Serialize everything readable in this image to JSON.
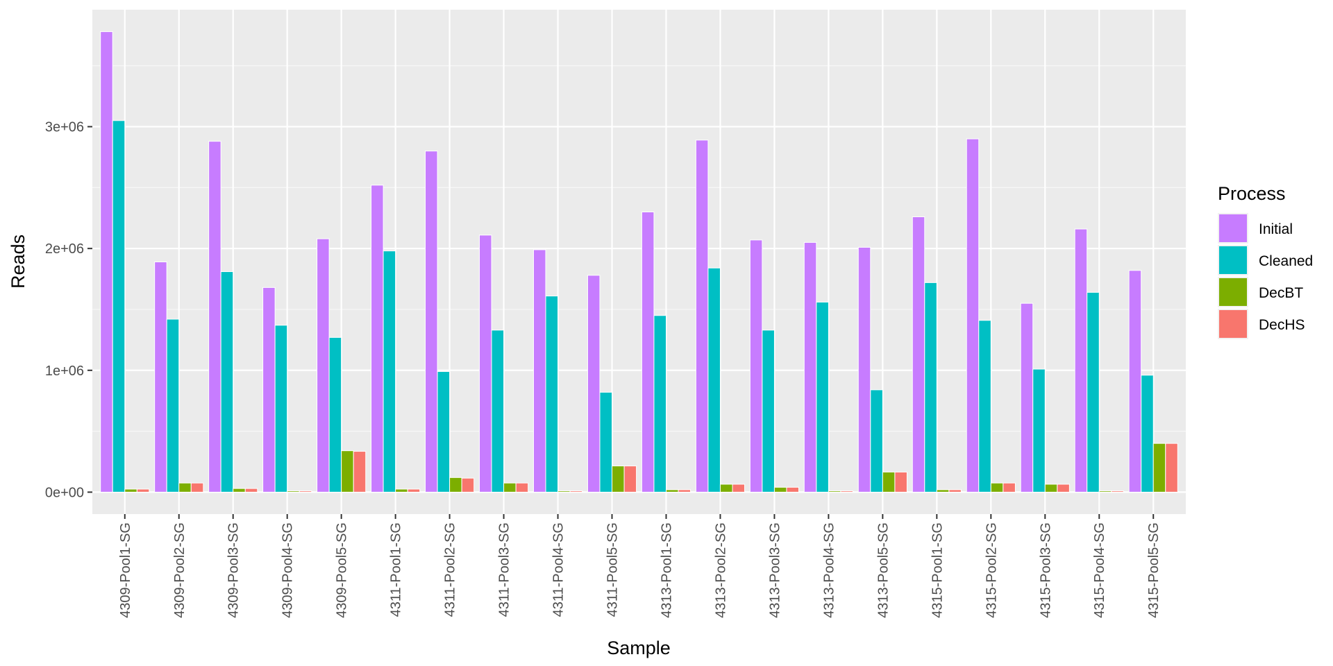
{
  "chart_data": {
    "type": "bar",
    "xlabel": "Sample",
    "ylabel": "Reads",
    "ylim": [
      -180000,
      3960000
    ],
    "yticks": [
      0,
      1000000,
      2000000,
      3000000
    ],
    "ytick_labels": [
      "0e+00",
      "1e+06",
      "2e+06",
      "3e+06"
    ],
    "grid": true,
    "legend_title": "Process",
    "legend_position": "right",
    "categories": [
      "4309-Pool1-SG",
      "4309-Pool2-SG",
      "4309-Pool3-SG",
      "4309-Pool4-SG",
      "4309-Pool5-SG",
      "4311-Pool1-SG",
      "4311-Pool2-SG",
      "4311-Pool3-SG",
      "4311-Pool4-SG",
      "4311-Pool5-SG",
      "4313-Pool1-SG",
      "4313-Pool2-SG",
      "4313-Pool3-SG",
      "4313-Pool4-SG",
      "4313-Pool5-SG",
      "4315-Pool1-SG",
      "4315-Pool2-SG",
      "4315-Pool3-SG",
      "4315-Pool4-SG",
      "4315-Pool5-SG"
    ],
    "series": [
      {
        "name": "Initial",
        "color": "#C77CFF",
        "values": [
          3780000,
          1890000,
          2880000,
          1680000,
          2080000,
          2520000,
          2800000,
          2110000,
          1990000,
          1780000,
          2300000,
          2890000,
          2070000,
          2050000,
          2010000,
          2260000,
          2900000,
          1550000,
          2160000,
          1820000
        ]
      },
      {
        "name": "Cleaned",
        "color": "#00BFC4",
        "values": [
          3050000,
          1420000,
          1810000,
          1370000,
          1270000,
          1980000,
          990000,
          1330000,
          1610000,
          820000,
          1450000,
          1840000,
          1330000,
          1560000,
          840000,
          1720000,
          1410000,
          1010000,
          1640000,
          960000
        ]
      },
      {
        "name": "DecBT",
        "color": "#7CAE00",
        "values": [
          25000,
          75000,
          30000,
          10000,
          340000,
          25000,
          120000,
          75000,
          10000,
          215000,
          20000,
          65000,
          40000,
          10000,
          165000,
          20000,
          75000,
          65000,
          10000,
          400000
        ]
      },
      {
        "name": "DecHS",
        "color": "#F8766D",
        "values": [
          25000,
          75000,
          30000,
          10000,
          335000,
          25000,
          115000,
          75000,
          10000,
          215000,
          20000,
          65000,
          40000,
          10000,
          165000,
          20000,
          75000,
          65000,
          10000,
          400000
        ]
      }
    ]
  }
}
